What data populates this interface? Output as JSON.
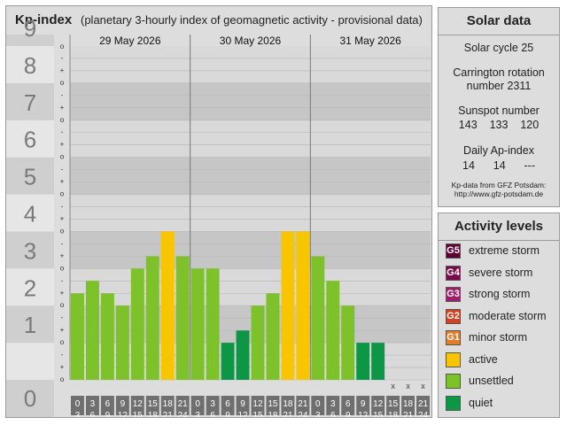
{
  "header": {
    "title": "Kp-index",
    "subtitle": "(planetary 3-hourly index of geomagnetic activity - provisional data)"
  },
  "chart_data": {
    "type": "bar",
    "y_tick_labels": [
      "0",
      "1",
      "2",
      "3",
      "4",
      "5",
      "6",
      "7",
      "8",
      "9"
    ],
    "y_subtick_labels": [
      "o",
      "+",
      "-"
    ],
    "ylim": [
      0,
      9
    ],
    "days": [
      "29 May 2026",
      "30 May 2026",
      "31 May 2026"
    ],
    "interval_start_labels": [
      "0",
      "3",
      "6",
      "9",
      "12",
      "15",
      "18",
      "21"
    ],
    "interval_end_labels": [
      "3",
      "6",
      "9",
      "12",
      "15",
      "18",
      "21",
      "24"
    ],
    "missing_marker": "x",
    "values": [
      2.33,
      2.67,
      2.33,
      2.0,
      3.0,
      3.33,
      4.0,
      3.33,
      3.0,
      3.0,
      1.0,
      1.33,
      2.0,
      2.33,
      4.0,
      4.0,
      3.33,
      2.67,
      2.0,
      1.0,
      1.0,
      null,
      null,
      null
    ],
    "color_by_level": {
      "quiet": "#0e9647",
      "unsettled": "#7dc22a",
      "active": "#f8c600"
    }
  },
  "solar": {
    "title": "Solar data",
    "cycle": "Solar cycle 25",
    "carrington_1": "Carrington rotation",
    "carrington_2": "number 2311",
    "sunspot_label": "Sunspot number",
    "sunspot_values": [
      "143",
      "133",
      "120"
    ],
    "ap_label": "Daily Ap-index",
    "ap_values": [
      "14",
      "14",
      "---"
    ],
    "source_1": "Kp-data from GFZ Potsdam:",
    "source_2": "http://www.gfz-potsdam.de"
  },
  "activity": {
    "title": "Activity levels",
    "levels": [
      {
        "code": "G5",
        "label": "extreme storm",
        "color": "#5a0033"
      },
      {
        "code": "G4",
        "label": "severe storm",
        "color": "#7a0b4a"
      },
      {
        "code": "G3",
        "label": "strong storm",
        "color": "#9e1e67"
      },
      {
        "code": "G2",
        "label": "moderate storm",
        "color": "#d04424"
      },
      {
        "code": "G1",
        "label": "minor storm",
        "color": "#e17e2e"
      },
      {
        "code": "",
        "label": "active",
        "color": "#f8c600"
      },
      {
        "code": "",
        "label": "unsettled",
        "color": "#7dc22a"
      },
      {
        "code": "",
        "label": "quiet",
        "color": "#0e9647"
      }
    ]
  }
}
